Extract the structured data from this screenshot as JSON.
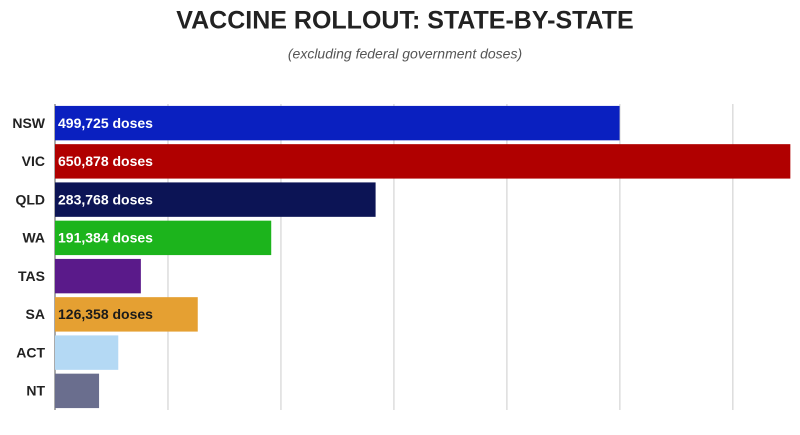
{
  "chart_data": {
    "type": "bar",
    "orientation": "horizontal",
    "title": "VACCINE ROLLOUT: STATE-BY-STATE",
    "subtitle": "(excluding federal government doses)",
    "categories": [
      "NSW",
      "VIC",
      "QLD",
      "WA",
      "TAS",
      "SA",
      "ACT",
      "NT"
    ],
    "values": [
      499725,
      650878,
      283768,
      191384,
      76000,
      126358,
      56000,
      39000
    ],
    "value_labels": [
      "499,725 doses",
      "650,878 doses",
      "283,768 doses",
      "191,384 doses",
      null,
      "126,358 doses",
      null,
      null
    ],
    "colors": [
      "#0a20c0",
      "#b00000",
      "#0c1455",
      "#1cb41c",
      "#5a1a8a",
      "#e5a032",
      "#b4d9f4",
      "#6a6e8e"
    ],
    "xlim": [
      0,
      655000
    ],
    "xticks": [
      0,
      100000,
      200000,
      300000,
      400000,
      500000,
      600000
    ],
    "grid": true
  }
}
